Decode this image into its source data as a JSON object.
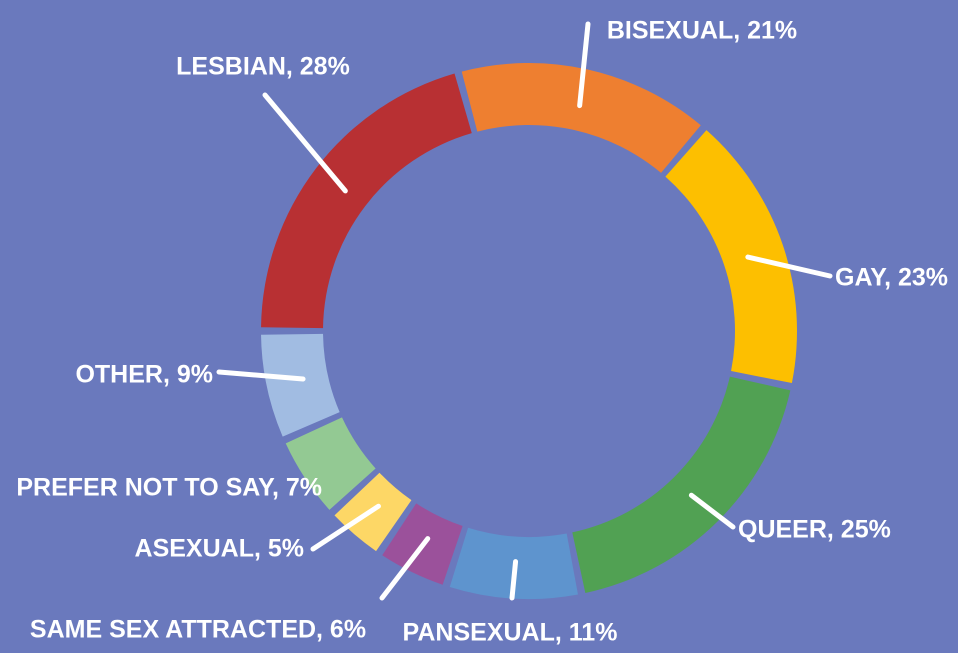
{
  "chart_data": {
    "type": "donut",
    "values": [
      28,
      21,
      23,
      25,
      11,
      6,
      5,
      7,
      9
    ],
    "value_labels": [
      "LESBIAN, 28%",
      "BISEXUAL, 21%",
      "GAY, 23%",
      "QUEER, 25%",
      "PANSEXUAL, 11%",
      "SAME SEX ATTRACTED, 6%",
      "ASEXUAL, 5%",
      "PREFER NOT TO SAY, 7%",
      "OTHER, 9%"
    ],
    "colors": [
      "#b83033",
      "#ee7f30",
      "#fdbf00",
      "#51a153",
      "#5e94ce",
      "#9b519b",
      "#fdd766",
      "#93c993",
      "#a1bce2"
    ]
  }
}
